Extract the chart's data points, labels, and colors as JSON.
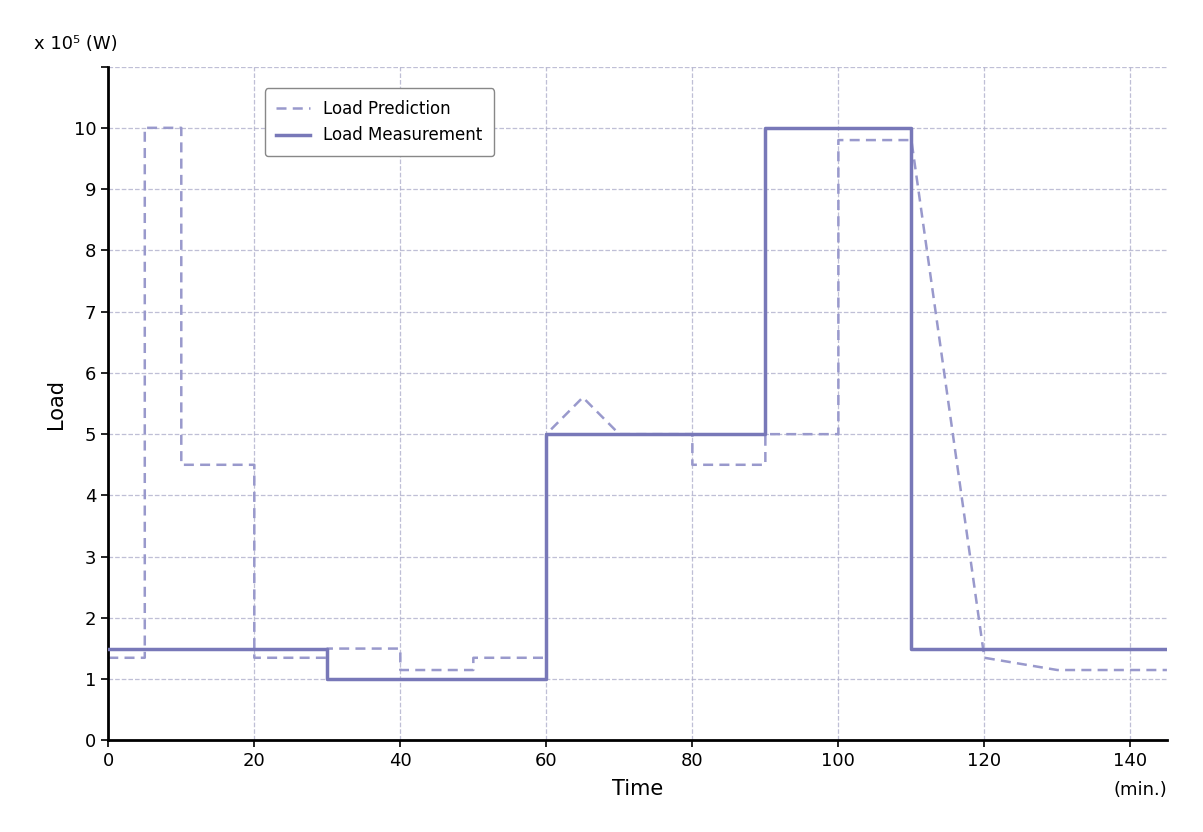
{
  "xlabel": "Time",
  "ylabel": "Load",
  "unit_label": "(min.)",
  "y_scale_label": "x 10⁵ (W)",
  "xlim": [
    0,
    145
  ],
  "ylim": [
    0,
    11
  ],
  "xticks": [
    0,
    20,
    40,
    60,
    80,
    100,
    120,
    140
  ],
  "yticks": [
    0,
    1,
    2,
    3,
    4,
    5,
    6,
    7,
    8,
    9,
    10,
    11
  ],
  "background_color": "#ffffff",
  "line_color": "#7878b8",
  "pred_color": "#9999cc",
  "meas_lw": 2.5,
  "pred_lw": 1.8,
  "measurement_x": [
    0,
    30,
    30,
    60,
    60,
    90,
    90,
    110,
    110,
    145
  ],
  "measurement_y": [
    1.5,
    1.5,
    1.0,
    1.0,
    5.0,
    5.0,
    10.0,
    10.0,
    1.5,
    1.5
  ],
  "prediction_x": [
    0,
    5,
    5,
    5,
    5,
    10,
    10,
    10,
    10,
    20,
    20,
    20,
    20,
    30,
    30,
    30,
    30,
    40,
    40,
    40,
    40,
    50,
    50,
    50,
    50,
    60,
    60,
    60,
    60,
    65,
    65,
    65,
    65,
    70,
    70,
    70,
    70,
    80,
    80,
    80,
    80,
    90,
    90,
    90,
    90,
    100,
    100,
    100,
    100,
    110,
    110,
    110,
    110,
    120,
    120,
    120,
    120,
    130,
    130,
    145
  ],
  "prediction_y": [
    1.35,
    1.35,
    1.35,
    10.0,
    10.0,
    10.0,
    10.0,
    4.5,
    4.5,
    4.5,
    4.5,
    1.35,
    1.35,
    1.35,
    1.35,
    1.5,
    1.5,
    1.5,
    1.5,
    1.15,
    1.15,
    1.15,
    1.15,
    1.35,
    1.35,
    1.35,
    1.35,
    5.0,
    5.0,
    5.6,
    5.6,
    5.6,
    5.6,
    5.0,
    5.0,
    5.0,
    5.0,
    5.0,
    5.0,
    4.5,
    4.5,
    4.5,
    4.5,
    5.0,
    5.0,
    5.0,
    5.0,
    9.8,
    9.8,
    9.8,
    9.8,
    9.8,
    9.8,
    1.35,
    1.35,
    1.35,
    1.35,
    1.15,
    1.15,
    1.15
  ]
}
